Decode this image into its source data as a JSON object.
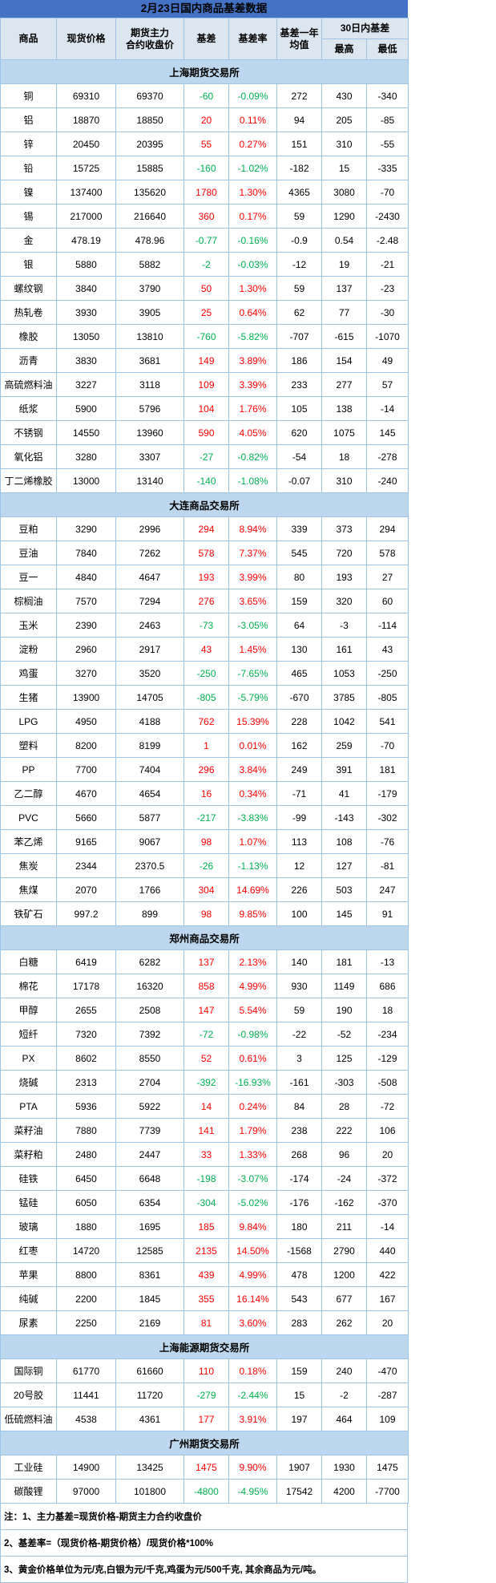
{
  "colors": {
    "title_bar_bg": "#4472C4",
    "header_bg": "#DCE6F1",
    "section_bg": "#BDD7EE",
    "border": "#9DC3E6",
    "positive": "#FF0000",
    "negative": "#00B050"
  },
  "chart_data": {
    "type": "table",
    "title": "2月23日国内商品基差数据",
    "columns": [
      "商品",
      "现货价格",
      "期货主力\n合约收盘价",
      "基差",
      "基差率",
      "基差一年\n均值",
      "30日内基差"
    ],
    "sub_columns": [
      "最高",
      "最低"
    ],
    "sections": [
      {
        "exchange": "上海期货交易所",
        "rows": [
          [
            "铜",
            "69310",
            "69370",
            "-60",
            "-0.09%",
            "272",
            "430",
            "-340"
          ],
          [
            "铝",
            "18870",
            "18850",
            "20",
            "0.11%",
            "94",
            "205",
            "-85"
          ],
          [
            "锌",
            "20450",
            "20395",
            "55",
            "0.27%",
            "151",
            "310",
            "-55"
          ],
          [
            "铅",
            "15725",
            "15885",
            "-160",
            "-1.02%",
            "-182",
            "15",
            "-335"
          ],
          [
            "镍",
            "137400",
            "135620",
            "1780",
            "1.30%",
            "4365",
            "3080",
            "-70"
          ],
          [
            "锡",
            "217000",
            "216640",
            "360",
            "0.17%",
            "59",
            "1290",
            "-2430"
          ],
          [
            "金",
            "478.19",
            "478.96",
            "-0.77",
            "-0.16%",
            "-0.9",
            "0.54",
            "-2.48"
          ],
          [
            "银",
            "5880",
            "5882",
            "-2",
            "-0.03%",
            "-12",
            "19",
            "-21"
          ],
          [
            "螺纹钢",
            "3840",
            "3790",
            "50",
            "1.30%",
            "59",
            "137",
            "-23"
          ],
          [
            "热轧卷",
            "3930",
            "3905",
            "25",
            "0.64%",
            "62",
            "77",
            "-30"
          ],
          [
            "橡胶",
            "13050",
            "13810",
            "-760",
            "-5.82%",
            "-707",
            "-615",
            "-1070"
          ],
          [
            "沥青",
            "3830",
            "3681",
            "149",
            "3.89%",
            "186",
            "154",
            "49"
          ],
          [
            "高硫燃料油",
            "3227",
            "3118",
            "109",
            "3.39%",
            "233",
            "277",
            "57"
          ],
          [
            "纸浆",
            "5900",
            "5796",
            "104",
            "1.76%",
            "105",
            "138",
            "-14"
          ],
          [
            "不锈钢",
            "14550",
            "13960",
            "590",
            "4.05%",
            "620",
            "1075",
            "145"
          ],
          [
            "氧化铝",
            "3280",
            "3307",
            "-27",
            "-0.82%",
            "-54",
            "18",
            "-278"
          ],
          [
            "丁二烯橡胶",
            "13000",
            "13140",
            "-140",
            "-1.08%",
            "-0.07",
            "310",
            "-240"
          ]
        ]
      },
      {
        "exchange": "大连商品交易所",
        "rows": [
          [
            "豆粕",
            "3290",
            "2996",
            "294",
            "8.94%",
            "339",
            "373",
            "294"
          ],
          [
            "豆油",
            "7840",
            "7262",
            "578",
            "7.37%",
            "545",
            "720",
            "578"
          ],
          [
            "豆一",
            "4840",
            "4647",
            "193",
            "3.99%",
            "80",
            "193",
            "27"
          ],
          [
            "棕榈油",
            "7570",
            "7294",
            "276",
            "3.65%",
            "159",
            "320",
            "60"
          ],
          [
            "玉米",
            "2390",
            "2463",
            "-73",
            "-3.05%",
            "64",
            "-3",
            "-114"
          ],
          [
            "淀粉",
            "2960",
            "2917",
            "43",
            "1.45%",
            "130",
            "161",
            "43"
          ],
          [
            "鸡蛋",
            "3270",
            "3520",
            "-250",
            "-7.65%",
            "465",
            "1053",
            "-250"
          ],
          [
            "生猪",
            "13900",
            "14705",
            "-805",
            "-5.79%",
            "-670",
            "3785",
            "-805"
          ],
          [
            "LPG",
            "4950",
            "4188",
            "762",
            "15.39%",
            "228",
            "1042",
            "541"
          ],
          [
            "塑料",
            "8200",
            "8199",
            "1",
            "0.01%",
            "162",
            "259",
            "-70"
          ],
          [
            "PP",
            "7700",
            "7404",
            "296",
            "3.84%",
            "249",
            "391",
            "181"
          ],
          [
            "乙二醇",
            "4670",
            "4654",
            "16",
            "0.34%",
            "-71",
            "41",
            "-179"
          ],
          [
            "PVC",
            "5660",
            "5877",
            "-217",
            "-3.83%",
            "-99",
            "-143",
            "-302"
          ],
          [
            "苯乙烯",
            "9165",
            "9067",
            "98",
            "1.07%",
            "113",
            "108",
            "-76"
          ],
          [
            "焦炭",
            "2344",
            "2370.5",
            "-26",
            "-1.13%",
            "12",
            "127",
            "-81"
          ],
          [
            "焦煤",
            "2070",
            "1766",
            "304",
            "14.69%",
            "226",
            "503",
            "247"
          ],
          [
            "铁矿石",
            "997.2",
            "899",
            "98",
            "9.85%",
            "100",
            "145",
            "91"
          ]
        ]
      },
      {
        "exchange": "郑州商品交易所",
        "rows": [
          [
            "白糖",
            "6419",
            "6282",
            "137",
            "2.13%",
            "140",
            "181",
            "-13"
          ],
          [
            "棉花",
            "17178",
            "16320",
            "858",
            "4.99%",
            "930",
            "1149",
            "686"
          ],
          [
            "甲醇",
            "2655",
            "2508",
            "147",
            "5.54%",
            "59",
            "190",
            "18"
          ],
          [
            "短纤",
            "7320",
            "7392",
            "-72",
            "-0.98%",
            "-22",
            "-52",
            "-234"
          ],
          [
            "PX",
            "8602",
            "8550",
            "52",
            "0.61%",
            "3",
            "125",
            "-129"
          ],
          [
            "烧碱",
            "2313",
            "2704",
            "-392",
            "-16.93%",
            "-161",
            "-303",
            "-508"
          ],
          [
            "PTA",
            "5936",
            "5922",
            "14",
            "0.24%",
            "84",
            "28",
            "-72"
          ],
          [
            "菜籽油",
            "7880",
            "7739",
            "141",
            "1.79%",
            "238",
            "222",
            "106"
          ],
          [
            "菜籽粕",
            "2480",
            "2447",
            "33",
            "1.33%",
            "268",
            "96",
            "20"
          ],
          [
            "硅铁",
            "6450",
            "6648",
            "-198",
            "-3.07%",
            "-174",
            "-24",
            "-372"
          ],
          [
            "锰硅",
            "6050",
            "6354",
            "-304",
            "-5.02%",
            "-176",
            "-162",
            "-370"
          ],
          [
            "玻璃",
            "1880",
            "1695",
            "185",
            "9.84%",
            "180",
            "211",
            "-14"
          ],
          [
            "红枣",
            "14720",
            "12585",
            "2135",
            "14.50%",
            "-1568",
            "2790",
            "440"
          ],
          [
            "苹果",
            "8800",
            "8361",
            "439",
            "4.99%",
            "478",
            "1200",
            "422"
          ],
          [
            "纯碱",
            "2200",
            "1845",
            "355",
            "16.14%",
            "543",
            "677",
            "167"
          ],
          [
            "尿素",
            "2250",
            "2169",
            "81",
            "3.60%",
            "283",
            "262",
            "20"
          ]
        ]
      },
      {
        "exchange": "上海能源期货交易所",
        "rows": [
          [
            "国际铜",
            "61770",
            "61660",
            "110",
            "0.18%",
            "159",
            "240",
            "-470"
          ],
          [
            "20号胶",
            "11441",
            "11720",
            "-279",
            "-2.44%",
            "15",
            "-2",
            "-287"
          ],
          [
            "低硫燃料油",
            "4538",
            "4361",
            "177",
            "3.91%",
            "197",
            "464",
            "109"
          ]
        ]
      },
      {
        "exchange": "广州期货交易所",
        "rows": [
          [
            "工业硅",
            "14900",
            "13425",
            "1475",
            "9.90%",
            "1907",
            "1930",
            "1475"
          ],
          [
            "碳酸锂",
            "97000",
            "101800",
            "-4800",
            "-4.95%",
            "17542",
            "4200",
            "-7700"
          ]
        ]
      }
    ],
    "notes": [
      "注：1、主力基差=现货价格-期货主力合约收盘价",
      "2、基差率=（现货价格-期货价格）/现货价格*100%",
      "3、黄金价格单位为元/克,白银为元/千克,鸡蛋为元/500千克, 其余商品为元/吨。"
    ]
  }
}
